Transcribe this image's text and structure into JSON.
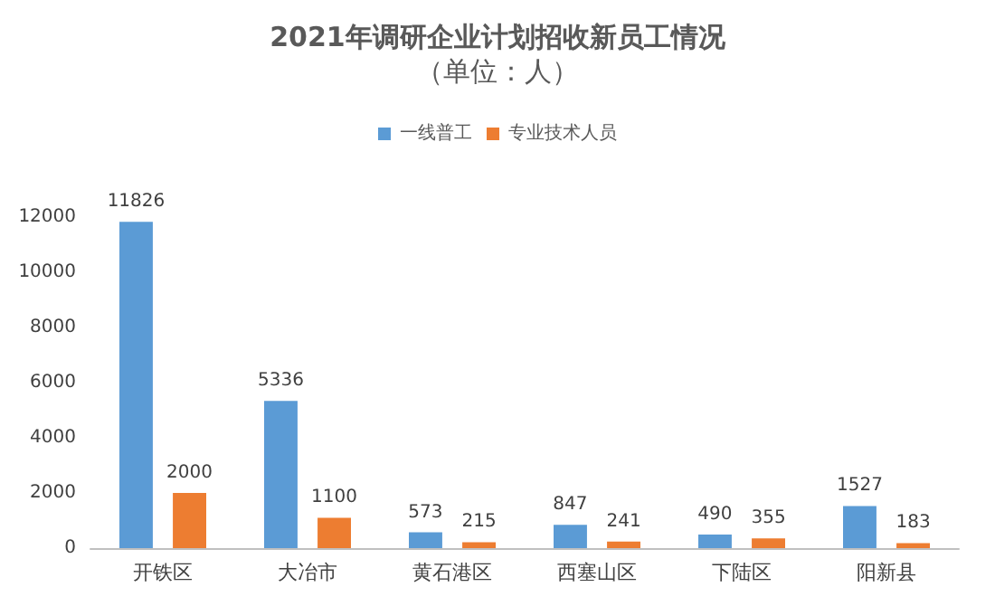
{
  "chart_data": {
    "type": "bar",
    "title": "2021年调研企业计划招收新员工情况",
    "subtitle": "（单位：人）",
    "categories": [
      "开铁区",
      "大冶市",
      "黄石港区",
      "西塞山区",
      "下陆区",
      "阳新县"
    ],
    "series": [
      {
        "name": "一线普工",
        "color": "#5b9bd5",
        "values": [
          11826,
          5336,
          573,
          847,
          490,
          1527
        ]
      },
      {
        "name": "专业技术人员",
        "color": "#ed7d31",
        "values": [
          2000,
          1100,
          215,
          241,
          355,
          183
        ]
      }
    ],
    "ylim": [
      0,
      12000
    ],
    "yticks": [
      0,
      2000,
      4000,
      6000,
      8000,
      10000,
      12000
    ],
    "grid": false,
    "legend": "top",
    "data_labels": true
  }
}
